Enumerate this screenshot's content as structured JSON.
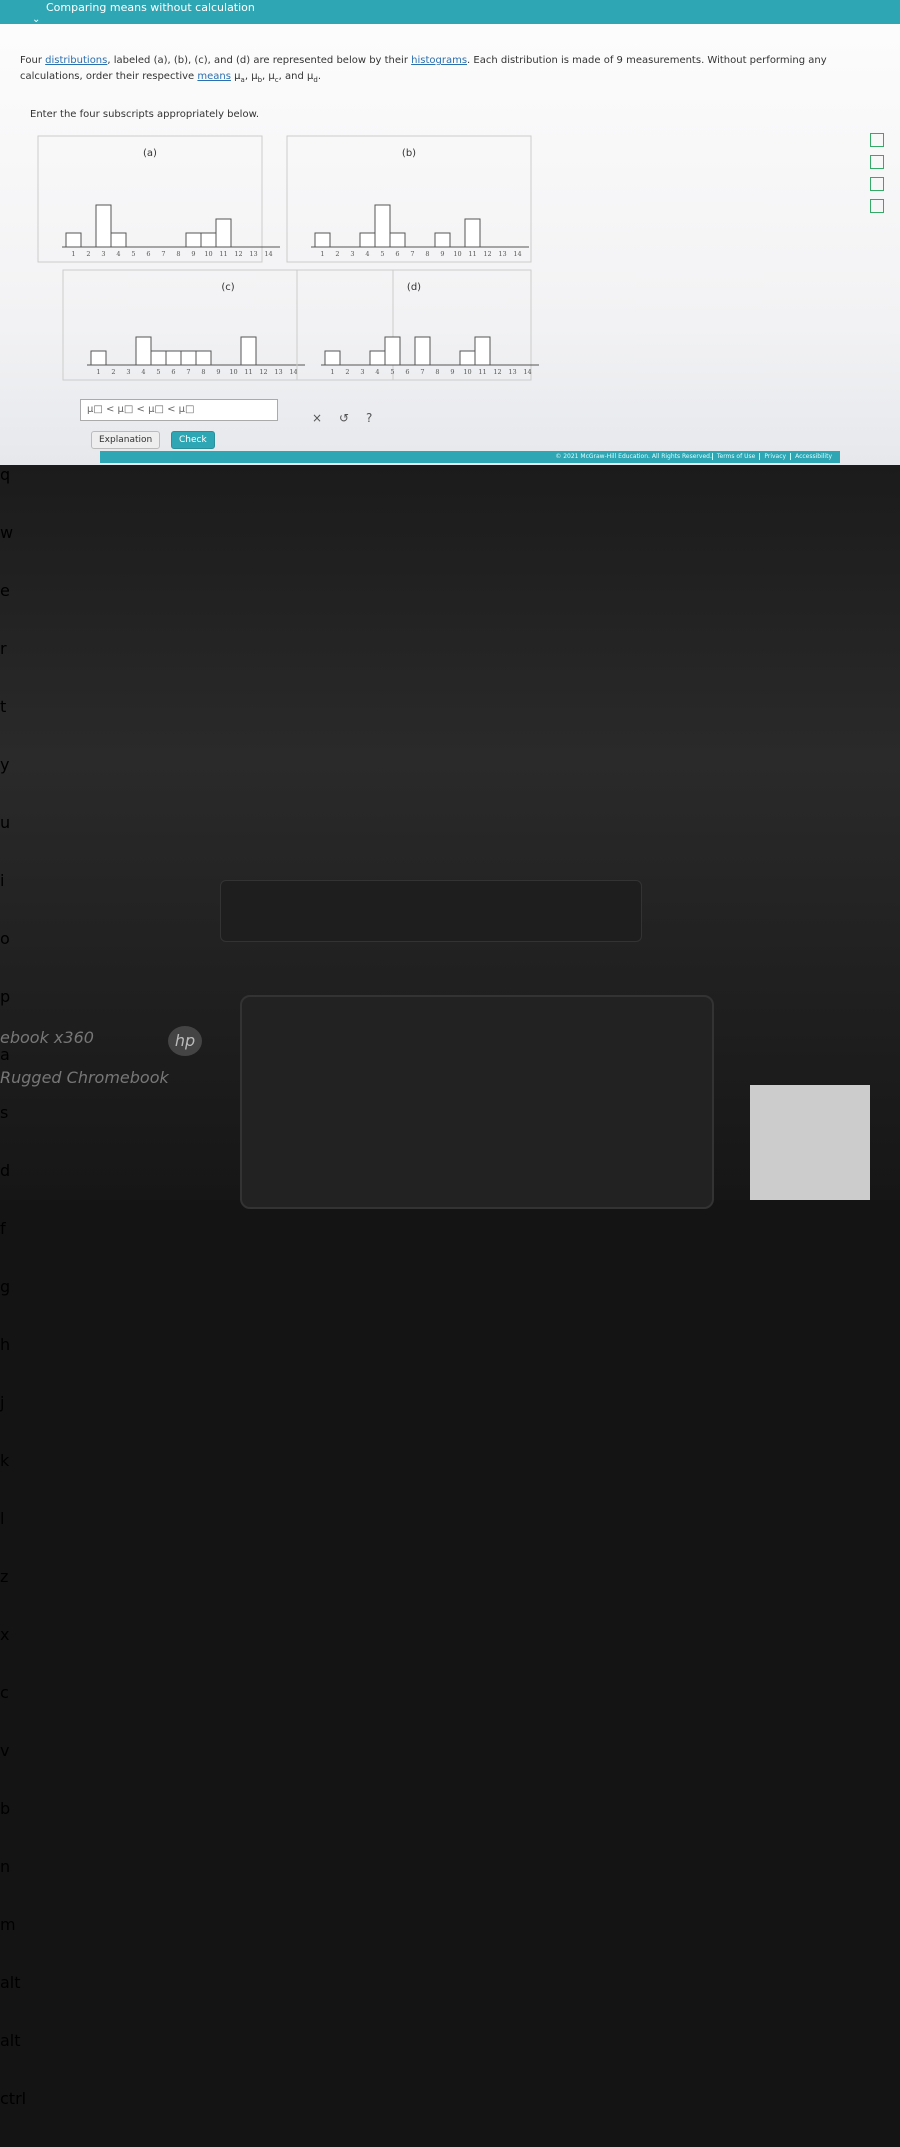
{
  "header": {
    "title": "Comparing means without calculation"
  },
  "question": {
    "intro": "Four ",
    "link_distributions": "distributions",
    "middle": ", labeled (a), (b), (c), and (d) are represented below by their ",
    "link_histograms": "histograms",
    "rest": ". Each distribution is made of 9 measurements. Without performing any calculations, order their respective ",
    "link_means": "means",
    "means": [
      {
        "symbol": "μ",
        "sub": "a"
      },
      {
        "symbol": "μ",
        "sub": "b"
      },
      {
        "symbol": "μ",
        "sub": "c"
      },
      {
        "symbol": "μ",
        "sub": "d"
      }
    ],
    "separators": [
      ", ",
      ", ",
      ", and ",
      "."
    ]
  },
  "instruction": "Enter the four subscripts appropriately below.",
  "x_ticks": [
    1,
    2,
    3,
    4,
    5,
    6,
    7,
    8,
    9,
    10,
    11,
    12,
    13,
    14
  ],
  "histograms": [
    {
      "label": "(a)",
      "counts": [
        1,
        0,
        3,
        1,
        0,
        0,
        0,
        0,
        1,
        1,
        2,
        0,
        0,
        0
      ]
    },
    {
      "label": "(b)",
      "counts": [
        1,
        0,
        0,
        1,
        3,
        1,
        0,
        0,
        1,
        0,
        2,
        0,
        0,
        0
      ]
    },
    {
      "label": "(c)",
      "counts": [
        1,
        0,
        0,
        2,
        1,
        1,
        1,
        1,
        0,
        0,
        2,
        0,
        0,
        0
      ]
    },
    {
      "label": "(d)",
      "counts": [
        1,
        0,
        0,
        1,
        2,
        0,
        2,
        0,
        0,
        1,
        2,
        0,
        0,
        0
      ]
    }
  ],
  "answer_placeholder": "μ□ < μ□ < μ□ < μ□",
  "tools": [
    "×",
    "↺",
    "?"
  ],
  "buttons": {
    "explanation": "Explanation",
    "check": "Check"
  },
  "footer": {
    "copyright": "© 2021 McGraw-Hill Education. All Rights Reserved.",
    "links": [
      "Terms of Use",
      "Privacy",
      "Accessibility"
    ]
  },
  "keyboard": {
    "rows": [
      [
        "q",
        "w",
        "e",
        "r",
        "t",
        "y",
        "u",
        "i",
        "o",
        "p"
      ],
      [
        "a",
        "s",
        "d",
        "f",
        "g",
        "h",
        "j",
        "k",
        "l"
      ],
      [
        "z",
        "x",
        "c",
        "v",
        "b",
        "n",
        "m"
      ]
    ],
    "left_alt": "alt",
    "right_alt": "alt",
    "right_ctrl": "ctrl"
  },
  "laptop": {
    "model": "ebook x360",
    "tagline": "Rugged Chromebook",
    "brand": "hp"
  }
}
